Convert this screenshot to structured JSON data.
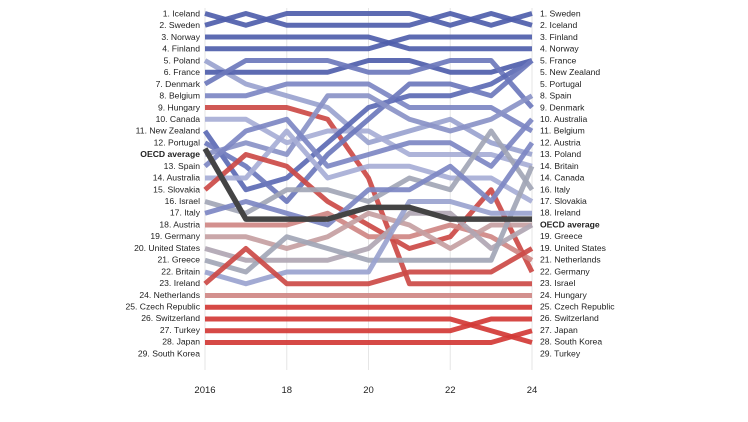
{
  "chart_data": {
    "type": "line",
    "x": [
      2016,
      2017,
      2018,
      2019,
      2020,
      2021,
      2022,
      2023,
      2024
    ],
    "xticks": [
      "2016",
      "18",
      "20",
      "22",
      "24"
    ],
    "y_scale": "rank (1 at top, 29 at bottom)",
    "ylim": [
      1,
      29
    ],
    "start_labels": [
      "1. Iceland",
      "2. Sweden",
      "3. Norway",
      "4. Finland",
      "5. Poland",
      "6. France",
      "7. Denmark",
      "8. Belgium",
      "9. Hungary",
      "10. Canada",
      "11. New Zealand",
      "12. Portugal",
      "OECD average",
      "13. Spain",
      "14. Australia",
      "15. Slovakia",
      "16. Israel",
      "17. Italy",
      "18. Austria",
      "19. Germany",
      "20. United States",
      "21. Greece",
      "22. Britain",
      "23. Ireland",
      "24. Netherlands",
      "25. Czech Republic",
      "26. Switzerland",
      "27. Turkey",
      "28. Japan",
      "29. South Korea"
    ],
    "end_labels": [
      "1. Sweden",
      "2. Iceland",
      "3. Finland",
      "4. Norway",
      "5. France",
      "5. New Zealand",
      "5. Portugal",
      "8. Spain",
      "9. Denmark",
      "10. Australia",
      "11. Belgium",
      "12. Austria",
      "13. Poland",
      "14. Britain",
      "14. Canada",
      "16. Italy",
      "17. Slovakia",
      "18. Ireland",
      "OECD average",
      "19. Greece",
      "19. United States",
      "21. Netherlands",
      "22. Germany",
      "23. Israel",
      "24. Hungary",
      "25. Czech Republic",
      "26. Switzerland",
      "27. Japan",
      "28. South Korea",
      "29. Turkey"
    ],
    "series": [
      {
        "name": "Iceland",
        "color": "#4f5eab",
        "values": [
          1,
          2,
          1,
          1,
          1,
          1,
          2,
          1,
          2
        ]
      },
      {
        "name": "Sweden",
        "color": "#4f5eab",
        "values": [
          2,
          1,
          2,
          2,
          2,
          2,
          1,
          2,
          1
        ]
      },
      {
        "name": "Norway",
        "color": "#4f5eab",
        "values": [
          3,
          3,
          3,
          3,
          3,
          4,
          4,
          4,
          4
        ]
      },
      {
        "name": "Finland",
        "color": "#4f5eab",
        "values": [
          4,
          4,
          4,
          4,
          4,
          3,
          3,
          3,
          3
        ]
      },
      {
        "name": "Poland",
        "color": "#9aa3cf",
        "values": [
          5,
          7,
          8,
          9,
          12,
          11,
          10,
          12,
          13
        ]
      },
      {
        "name": "France",
        "color": "#4f5eab",
        "values": [
          6,
          6,
          6,
          6,
          5,
          5,
          6,
          6,
          5
        ]
      },
      {
        "name": "Denmark",
        "color": "#6c78bc",
        "values": [
          7,
          5,
          5,
          5,
          6,
          6,
          5,
          5,
          9
        ]
      },
      {
        "name": "Belgium",
        "color": "#7d87c3",
        "values": [
          8,
          8,
          7,
          7,
          7,
          9,
          9,
          9,
          11
        ]
      },
      {
        "name": "Hungary",
        "color": "#cc4a47",
        "values": [
          9,
          9,
          9,
          10,
          15,
          24,
          24,
          24,
          24
        ]
      },
      {
        "name": "Canada",
        "color": "#a7aed6",
        "values": [
          10,
          10,
          12,
          11,
          11,
          13,
          13,
          13,
          14
        ]
      },
      {
        "name": "New Zealand",
        "color": "#5c6ab4",
        "values": [
          11,
          16,
          15,
          12,
          9,
          8,
          8,
          7,
          5
        ]
      },
      {
        "name": "Portugal",
        "color": "#6c78bc",
        "values": [
          12,
          14,
          17,
          13,
          10,
          7,
          7,
          8,
          5
        ]
      },
      {
        "name": "Spain",
        "color": "#8a93c7",
        "values": [
          13,
          12,
          13,
          8,
          8,
          10,
          11,
          10,
          8
        ]
      },
      {
        "name": "Australia",
        "color": "#7d87c3",
        "values": [
          14,
          11,
          10,
          14,
          13,
          12,
          12,
          14,
          10
        ]
      },
      {
        "name": "Slovakia",
        "color": "#a7aed6",
        "values": [
          15,
          15,
          11,
          15,
          14,
          14,
          15,
          15,
          17
        ]
      },
      {
        "name": "Israel",
        "color": "#cc4a47",
        "values": [
          16,
          13,
          14,
          17,
          19,
          21,
          20,
          16,
          23
        ]
      },
      {
        "name": "Italy",
        "color": "#a2a6b6",
        "values": [
          17,
          18,
          16,
          16,
          17,
          15,
          16,
          11,
          16
        ]
      },
      {
        "name": "Austria",
        "color": "#7d87c3",
        "values": [
          18,
          17,
          18,
          19,
          16,
          16,
          14,
          17,
          12
        ]
      },
      {
        "name": "Germany",
        "color": "#cf8784",
        "values": [
          19,
          19,
          19,
          18,
          20,
          20,
          19,
          20,
          22
        ]
      },
      {
        "name": "United States",
        "color": "#c5a0a2",
        "values": [
          20,
          20,
          21,
          20,
          18,
          19,
          21,
          19,
          19
        ]
      },
      {
        "name": "Greece",
        "color": "#b0a6b3",
        "values": [
          21,
          22,
          22,
          22,
          21,
          18,
          18,
          21,
          19
        ]
      },
      {
        "name": "Britain",
        "color": "#a2a6b6",
        "values": [
          22,
          23,
          20,
          21,
          22,
          22,
          22,
          22,
          14
        ]
      },
      {
        "name": "Ireland",
        "color": "#9aa3cf",
        "values": [
          23,
          24,
          23,
          23,
          23,
          17,
          17,
          18,
          18
        ]
      },
      {
        "name": "Netherlands",
        "color": "#cc4a47",
        "values": [
          24,
          21,
          24,
          24,
          24,
          23,
          23,
          23,
          21
        ]
      },
      {
        "name": "Czech Republic",
        "color": "#cf8784",
        "values": [
          25,
          25,
          25,
          25,
          25,
          25,
          25,
          25,
          25
        ]
      },
      {
        "name": "Switzerland",
        "color": "#d23a36",
        "values": [
          26,
          26,
          26,
          26,
          26,
          26,
          26,
          26,
          26
        ]
      },
      {
        "name": "Turkey",
        "color": "#d23a36",
        "values": [
          27,
          27,
          27,
          27,
          27,
          27,
          27,
          28,
          29
        ]
      },
      {
        "name": "Japan",
        "color": "#d23a36",
        "values": [
          28,
          28,
          28,
          28,
          28,
          28,
          28,
          27,
          27
        ]
      },
      {
        "name": "South Korea",
        "color": "#d23a36",
        "values": [
          29,
          29,
          29,
          29,
          29,
          29,
          29,
          29,
          28
        ]
      },
      {
        "name": "OECD average",
        "color": "#444444",
        "values": [
          12.5,
          18.5,
          18.5,
          18.5,
          17.5,
          17.5,
          18.5,
          18.5,
          18.5
        ]
      }
    ]
  }
}
